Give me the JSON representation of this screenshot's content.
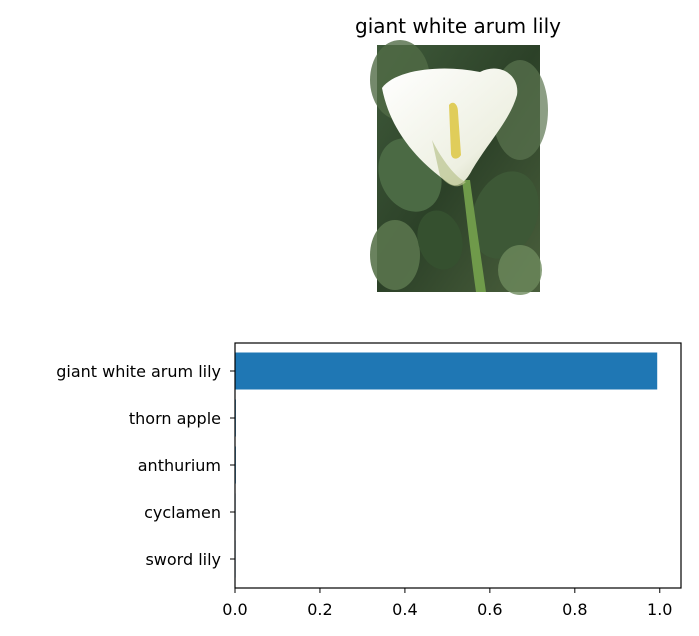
{
  "image_panel": {
    "title": "giant white arum lily"
  },
  "chart_data": {
    "type": "bar",
    "orientation": "horizontal",
    "categories": [
      "giant white arum lily",
      "thorn apple",
      "anthurium",
      "cyclamen",
      "sword lily"
    ],
    "values": [
      0.994,
      0.002,
      0.002,
      0.001,
      0.001
    ],
    "xlim": [
      0,
      1.05
    ],
    "xticks": [
      "0.0",
      "0.2",
      "0.4",
      "0.6",
      "0.8",
      "1.0"
    ],
    "title": "",
    "xlabel": "",
    "ylabel": "",
    "grid": false,
    "bar_color": "#1f77b4"
  }
}
